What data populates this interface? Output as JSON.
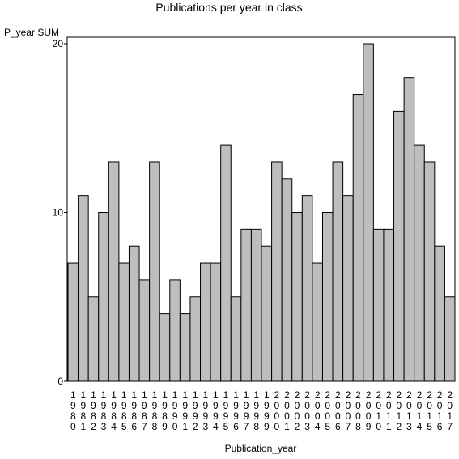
{
  "chart_data": {
    "type": "bar",
    "title": "Publications per year in class",
    "xlabel": "Publication_year",
    "ylabel": "P_year SUM",
    "categories": [
      "1980",
      "1981",
      "1982",
      "1983",
      "1984",
      "1985",
      "1986",
      "1987",
      "1988",
      "1989",
      "1990",
      "1991",
      "1992",
      "1993",
      "1994",
      "1995",
      "1996",
      "1997",
      "1998",
      "1999",
      "2000",
      "2001",
      "2002",
      "2003",
      "2004",
      "2005",
      "2006",
      "2007",
      "2008",
      "2009",
      "2010",
      "2011",
      "2012",
      "2013",
      "2014",
      "2015",
      "2016",
      "2017"
    ],
    "values": [
      7,
      11,
      5,
      10,
      13,
      7,
      8,
      6,
      13,
      4,
      6,
      4,
      5,
      7,
      7,
      14,
      5,
      9,
      9,
      8,
      13,
      12,
      10,
      11,
      7,
      10,
      13,
      11,
      17,
      20,
      9,
      9,
      16,
      18,
      14,
      13,
      8,
      5
    ],
    "ylim": [
      0,
      20
    ],
    "yticks": [
      "0",
      "10",
      "20"
    ],
    "grid": false,
    "legend": "none",
    "colors": {
      "bar_fill": "#bebebe",
      "bar_stroke": "#000000",
      "plot_background": "#ffffff"
    }
  }
}
